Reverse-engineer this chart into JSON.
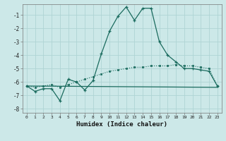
{
  "xlabel": "Humidex (Indice chaleur)",
  "bg_color": "#cce8e8",
  "grid_color": "#afd4d4",
  "line_color": "#1a6b5e",
  "xlim": [
    -0.5,
    23.5
  ],
  "ylim": [
    -8.3,
    -0.2
  ],
  "yticks": [
    -8,
    -7,
    -6,
    -5,
    -4,
    -3,
    -2,
    -1
  ],
  "xticks": [
    0,
    1,
    2,
    3,
    4,
    5,
    6,
    7,
    8,
    9,
    10,
    11,
    12,
    13,
    14,
    15,
    16,
    17,
    18,
    19,
    20,
    21,
    22,
    23
  ],
  "main_x": [
    0,
    1,
    2,
    3,
    4,
    5,
    6,
    7,
    8,
    9,
    10,
    11,
    12,
    13,
    14,
    15,
    16,
    17,
    18,
    19,
    20,
    21,
    22,
    23
  ],
  "main_y": [
    -6.3,
    -6.7,
    -6.5,
    -6.5,
    -7.4,
    -5.8,
    -6.0,
    -6.6,
    -5.9,
    -3.9,
    -2.2,
    -1.1,
    -0.4,
    -1.4,
    -0.5,
    -0.5,
    -3.0,
    -4.0,
    -4.5,
    -5.0,
    -5.0,
    -5.1,
    -5.2,
    -6.3
  ],
  "line2_x": [
    0,
    23
  ],
  "line2_y": [
    -6.3,
    -6.4
  ],
  "line3_x": [
    0,
    1,
    2,
    3,
    4,
    5,
    6,
    7,
    8,
    9,
    10,
    11,
    12,
    13,
    14,
    15,
    16,
    17,
    18,
    19,
    20,
    21,
    22,
    23
  ],
  "line3_y": [
    -6.3,
    -6.4,
    -6.3,
    -6.2,
    -6.4,
    -6.2,
    -6.0,
    -5.8,
    -5.6,
    -5.4,
    -5.2,
    -5.1,
    -5.0,
    -4.9,
    -4.9,
    -4.8,
    -4.8,
    -4.8,
    -4.7,
    -4.8,
    -4.8,
    -4.9,
    -5.0,
    -6.3
  ]
}
